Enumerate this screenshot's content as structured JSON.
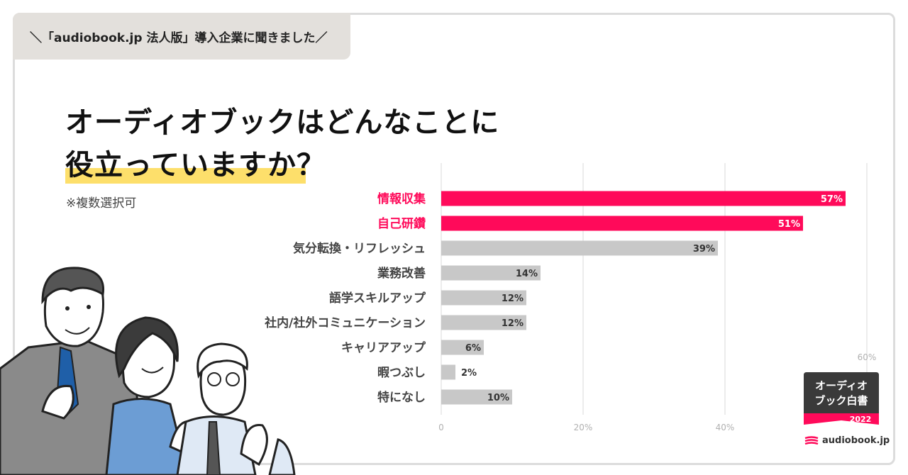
{
  "header_tag": "＼「audiobook.jp 法人版」導入企業に聞きました／",
  "headline": {
    "line1": "オーディオブックはどんなことに",
    "line2": "役立っていますか？"
  },
  "note": "※複数選択可",
  "badge": {
    "line1": "オーディオ",
    "line2": "ブック白書",
    "year": "2022"
  },
  "brand": "audiobook.jp",
  "colors": {
    "highlight": "#ff0a5a",
    "neutral": "#c8c8c8",
    "accent_yellow": "#fddf6b",
    "badge_dark": "#3a3a3a"
  },
  "chart_data": {
    "type": "bar",
    "orientation": "horizontal",
    "categories": [
      "情報収集",
      "自己研鑽",
      "気分転換・リフレッシュ",
      "業務改善",
      "語学スキルアップ",
      "社内/社外コミュニケーション",
      "キャリアアップ",
      "暇つぶし",
      "特になし"
    ],
    "values": [
      57,
      51,
      39,
      14,
      12,
      12,
      6,
      2,
      10
    ],
    "value_labels": [
      "57%",
      "51%",
      "39%",
      "14%",
      "12%",
      "12%",
      "6%",
      "2%",
      "10%"
    ],
    "highlighted": [
      true,
      true,
      false,
      false,
      false,
      false,
      false,
      false,
      false
    ],
    "xlim": [
      0,
      60
    ],
    "x_ticks": [
      "0",
      "20%",
      "40%",
      "60%"
    ],
    "grid": true
  }
}
